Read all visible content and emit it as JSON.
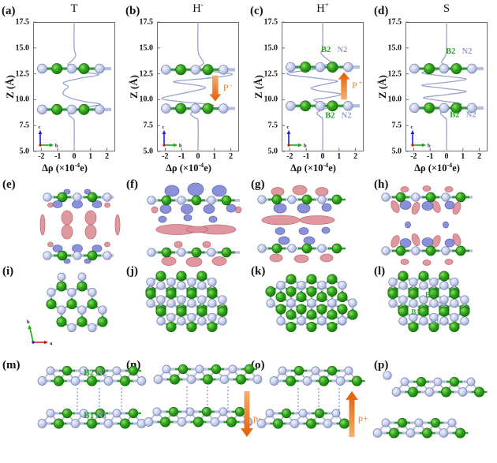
{
  "colors": {
    "curve": "#99a3c9",
    "boron_green": "#2f9e27",
    "boron_stroke": "#0d6606",
    "nitrogen_gray": "#c5cdeb",
    "nitrogen_stroke": "#7780ae",
    "bond_light": "#b7bedf",
    "arrow_orange": "#ed7d2b",
    "iso_pink": "#dd9097",
    "iso_pink_stroke": "#bb6670",
    "iso_blue": "#8287d8",
    "iso_blue_stroke": "#5a5fae",
    "dotted_blue": "#5578c9",
    "axis_blue": "#2020dd",
    "axis_green": "#18a818",
    "axis_red": "#cc2211",
    "site_green": "#2f9e27",
    "site_gray": "#959ec9"
  },
  "row1": {
    "ylabel": "Z (Å)",
    "xlabel_pre": "Δρ (×10",
    "xlabel_sup": "-4",
    "xlabel_post": "e)",
    "yticks": [
      "17.5",
      "15.0",
      "12.5",
      "10.0",
      "7.5",
      "5.0"
    ],
    "xticks": [
      "-2",
      "-1",
      "0",
      "1",
      "2"
    ],
    "axis_icon": {
      "up": "c",
      "right": "b"
    },
    "panels": [
      {
        "label": "(a)",
        "title": "T",
        "title_sup": ""
      },
      {
        "label": "(b)",
        "title": "H",
        "title_sup": "-",
        "arrow": {
          "dir": "down",
          "label": "P",
          "label_sup": "-",
          "x": 1.05,
          "z_tail": 12.35,
          "z_head": 9.85
        }
      },
      {
        "label": "(c)",
        "title": "H",
        "title_sup": "+",
        "arrow": {
          "dir": "up",
          "label": "P",
          "label_sup": "+",
          "x": 1.3,
          "z_tail": 10.0,
          "z_head": 12.65
        },
        "site_labels": [
          {
            "text": "B2",
            "color": "green",
            "x": 0.2,
            "z": 14.6
          },
          {
            "text": "N2",
            "color": "gray",
            "x": 1.2,
            "z": 14.6
          },
          {
            "text": "B2",
            "color": "green",
            "x": 0.45,
            "z": 8.25
          },
          {
            "text": "N2",
            "color": "gray",
            "x": 1.45,
            "z": 8.25
          }
        ]
      },
      {
        "label": "(d)",
        "title": "S",
        "title_sup": "",
        "site_labels": [
          {
            "text": "B2",
            "color": "green",
            "x": 0.25,
            "z": 14.45
          },
          {
            "text": "N2",
            "color": "gray",
            "x": 1.25,
            "z": 14.45
          },
          {
            "text": "B2",
            "color": "green",
            "x": 0.5,
            "z": 8.3
          },
          {
            "text": "N2",
            "color": "gray",
            "x": 1.5,
            "z": 8.3
          }
        ]
      }
    ]
  },
  "row2": {
    "panels": [
      {
        "label": "(e)"
      },
      {
        "label": "(f)"
      },
      {
        "label": "(g)"
      },
      {
        "label": "(h)"
      }
    ]
  },
  "row3": {
    "panels": [
      {
        "label": "(i)"
      },
      {
        "label": "(j)"
      },
      {
        "label": "(k)"
      },
      {
        "label": "(l)"
      }
    ],
    "axis_icon": {
      "up": "b",
      "right": "a"
    },
    "l_labels": [
      {
        "text": "B2",
        "color": "green"
      },
      {
        "text": "N2",
        "color": "gray"
      },
      {
        "text": "B1",
        "color": "green"
      },
      {
        "text": "N1",
        "color": "gray"
      }
    ]
  },
  "row4": {
    "panels": [
      {
        "label": "(m)",
        "top_label": {
          "b": "B2",
          "n": "N2"
        },
        "bottom_label": {
          "b": "B1",
          "n": "N1"
        }
      },
      {
        "label": "(n)",
        "arrow": {
          "dir": "down",
          "label": "p-"
        }
      },
      {
        "label": "(o)",
        "arrow": {
          "dir": "up",
          "label": "p+"
        }
      },
      {
        "label": "(p)"
      }
    ]
  },
  "chart_data": [
    {
      "type": "line",
      "title": "T",
      "xlabel": "Δρ (×10^-4 e)",
      "ylabel": "Z (Å)",
      "xlim": [
        -2.5,
        2.5
      ],
      "ylim": [
        5,
        17.5
      ],
      "xticks": [
        -2,
        -1,
        0,
        1,
        2
      ],
      "yticks": [
        5,
        7.5,
        10,
        12.5,
        15,
        17.5
      ],
      "layers_z": [
        13.0,
        9.05
      ],
      "points": [
        [
          0,
          17.5
        ],
        [
          0,
          15.0
        ],
        [
          0.1,
          14.3
        ],
        [
          -0.08,
          13.85
        ],
        [
          -0.38,
          13.35
        ],
        [
          0.05,
          12.95
        ],
        [
          0.7,
          12.65
        ],
        [
          1.5,
          12.4
        ],
        [
          0.3,
          12.05
        ],
        [
          -0.65,
          11.65
        ],
        [
          -0.35,
          11.25
        ],
        [
          -0.6,
          10.9
        ],
        [
          -0.65,
          10.5
        ],
        [
          -0.1,
          10.1
        ],
        [
          0.7,
          9.8
        ],
        [
          1.6,
          9.55
        ],
        [
          0.5,
          9.2
        ],
        [
          -0.25,
          8.75
        ],
        [
          -0.3,
          8.5
        ],
        [
          -0.1,
          8.2
        ],
        [
          0,
          7.8
        ],
        [
          0,
          5
        ]
      ]
    },
    {
      "type": "line",
      "title": "H-",
      "xlabel": "Δρ (×10^-4 e)",
      "ylabel": "Z (Å)",
      "xlim": [
        -2.5,
        2.5
      ],
      "ylim": [
        5,
        17.5
      ],
      "xticks": [
        -2,
        -1,
        0,
        1,
        2
      ],
      "yticks": [
        5,
        7.5,
        10,
        12.5,
        15,
        17.5
      ],
      "layers_z": [
        12.9,
        9.15
      ],
      "points": [
        [
          0,
          17.5
        ],
        [
          0,
          14.8
        ],
        [
          0.15,
          14.1
        ],
        [
          0.35,
          13.55
        ],
        [
          0.1,
          13.15
        ],
        [
          0.5,
          12.8
        ],
        [
          2.1,
          12.45
        ],
        [
          0.4,
          12.05
        ],
        [
          -1.5,
          11.75
        ],
        [
          -0.3,
          11.45
        ],
        [
          0.45,
          11.15
        ],
        [
          -0.5,
          10.75
        ],
        [
          -2.2,
          10.15
        ],
        [
          -1.0,
          9.8
        ],
        [
          0.9,
          9.5
        ],
        [
          0.45,
          9.25
        ],
        [
          -0.15,
          9.0
        ],
        [
          -0.45,
          8.6
        ],
        [
          -0.15,
          8.2
        ],
        [
          0,
          7.9
        ],
        [
          0,
          5
        ]
      ]
    },
    {
      "type": "line",
      "title": "H+",
      "xlabel": "Δρ (×10^-4 e)",
      "ylabel": "Z (Å)",
      "xlim": [
        -2.5,
        2.5
      ],
      "ylim": [
        5,
        17.5
      ],
      "xticks": [
        -2,
        -1,
        0,
        1,
        2
      ],
      "yticks": [
        5,
        7.5,
        10,
        12.5,
        15,
        17.5
      ],
      "layers_z": [
        13.15,
        9.4
      ],
      "points": [
        [
          0,
          17.5
        ],
        [
          0,
          15.1
        ],
        [
          -0.1,
          14.5
        ],
        [
          0.25,
          13.95
        ],
        [
          0.5,
          13.6
        ],
        [
          0.1,
          13.3
        ],
        [
          -0.5,
          12.95
        ],
        [
          -2.2,
          12.5
        ],
        [
          -0.45,
          12.1
        ],
        [
          0.9,
          11.8
        ],
        [
          0.15,
          11.5
        ],
        [
          -0.7,
          11.15
        ],
        [
          -0.15,
          10.85
        ],
        [
          1.1,
          10.55
        ],
        [
          0.5,
          10.25
        ],
        [
          -0.5,
          10.0
        ],
        [
          -0.25,
          9.75
        ],
        [
          0.45,
          9.45
        ],
        [
          0.2,
          9.15
        ],
        [
          -0.35,
          8.75
        ],
        [
          -0.1,
          8.3
        ],
        [
          0,
          8.0
        ],
        [
          0,
          5
        ]
      ]
    },
    {
      "type": "line",
      "title": "S",
      "xlabel": "Δρ (×10^-4 e)",
      "ylabel": "Z (Å)",
      "xlim": [
        -2.5,
        2.5
      ],
      "ylim": [
        5,
        17.5
      ],
      "xticks": [
        -2,
        -1,
        0,
        1,
        2
      ],
      "yticks": [
        5,
        7.5,
        10,
        12.5,
        15,
        17.5
      ],
      "layers_z": [
        13.0,
        9.2
      ],
      "points": [
        [
          0,
          17.5
        ],
        [
          0,
          14.8
        ],
        [
          -0.1,
          14.15
        ],
        [
          -0.3,
          13.6
        ],
        [
          0.05,
          13.25
        ],
        [
          -0.35,
          12.95
        ],
        [
          -1.5,
          12.6
        ],
        [
          -0.25,
          12.3
        ],
        [
          1.2,
          12.0
        ],
        [
          0.1,
          11.7
        ],
        [
          -1.5,
          11.4
        ],
        [
          -0.15,
          11.1
        ],
        [
          1.2,
          10.8
        ],
        [
          0.05,
          10.5
        ],
        [
          -1.4,
          10.2
        ],
        [
          -0.35,
          9.9
        ],
        [
          0.9,
          9.6
        ],
        [
          0.4,
          9.35
        ],
        [
          -0.2,
          9.05
        ],
        [
          -0.35,
          8.65
        ],
        [
          -0.1,
          8.25
        ],
        [
          0,
          7.9
        ],
        [
          0,
          5
        ]
      ]
    }
  ]
}
